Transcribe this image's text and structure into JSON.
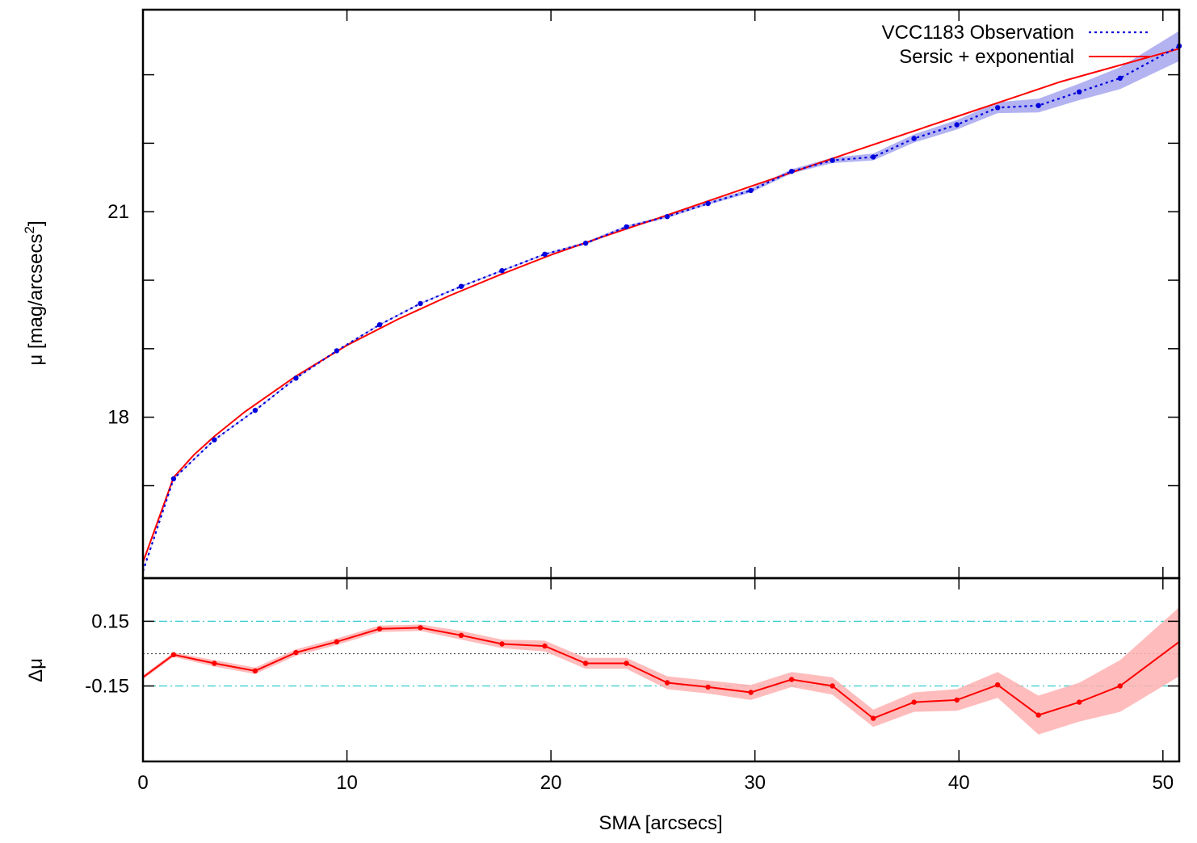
{
  "chart_data": [
    {
      "type": "line",
      "panel": "profile",
      "ylabel": "μ [mag/arcsecs",
      "ylabel_sup": "2",
      "ylabel_close": "]",
      "xlim": [
        0,
        50.8
      ],
      "ylim": [
        23.95,
        15.65
      ],
      "y_reversed": true,
      "yticks": [
        {
          "value": 18,
          "label": "18"
        },
        {
          "value": 21,
          "label": "21"
        }
      ],
      "yminor": [
        17,
        19,
        20,
        22,
        23
      ],
      "xticks": [
        0,
        10,
        20,
        30,
        40,
        50
      ],
      "legend_position": "top-right",
      "series": [
        {
          "name": "VCC1183 Observation",
          "style": "dotted",
          "color": "#0000dd",
          "markers": true,
          "band_color": "#9999ee",
          "x": [
            0,
            1.5,
            3.5,
            5.5,
            7.5,
            9.5,
            11.6,
            13.6,
            15.6,
            17.6,
            19.7,
            21.7,
            23.7,
            25.7,
            27.7,
            29.8,
            31.8,
            33.8,
            35.8,
            37.8,
            39.9,
            41.9,
            43.9,
            45.9,
            47.9,
            50.8
          ],
          "y": [
            15.75,
            17.1,
            17.67,
            18.1,
            18.57,
            18.97,
            19.35,
            19.66,
            19.91,
            20.14,
            20.38,
            20.54,
            20.78,
            20.93,
            21.12,
            21.31,
            21.59,
            21.75,
            21.8,
            22.07,
            22.27,
            22.52,
            22.55,
            22.75,
            22.95,
            23.42
          ],
          "err": [
            0.01,
            0.01,
            0.01,
            0.01,
            0.01,
            0.01,
            0.01,
            0.01,
            0.01,
            0.01,
            0.01,
            0.02,
            0.02,
            0.02,
            0.02,
            0.03,
            0.03,
            0.04,
            0.05,
            0.06,
            0.07,
            0.08,
            0.1,
            0.12,
            0.16,
            0.22
          ]
        },
        {
          "name": "Sersic + exponential",
          "style": "solid",
          "color": "#ff0000",
          "x": [
            0,
            1.5,
            2.5,
            3.5,
            5,
            7.5,
            10,
            12.5,
            15,
            17.5,
            20,
            22.5,
            25,
            30,
            35,
            40,
            45,
            50.8
          ],
          "y": [
            15.88,
            17.12,
            17.45,
            17.72,
            18.08,
            18.6,
            19.05,
            19.43,
            19.77,
            20.08,
            20.37,
            20.63,
            20.88,
            21.39,
            21.9,
            22.4,
            22.9,
            23.38
          ]
        }
      ]
    },
    {
      "type": "line",
      "panel": "residual",
      "ylabel": "Δμ",
      "xlabel": "SMA [arcsecs]",
      "xlim": [
        0,
        50.8
      ],
      "ylim": [
        -0.5,
        0.35
      ],
      "yticks": [
        {
          "value": 0.15,
          "label": "0.15"
        },
        {
          "value": -0.15,
          "label": "-0.15"
        }
      ],
      "xticks": [
        {
          "value": 0,
          "label": "0"
        },
        {
          "value": 10,
          "label": "10"
        },
        {
          "value": 20,
          "label": "20"
        },
        {
          "value": 30,
          "label": "30"
        },
        {
          "value": 40,
          "label": "40"
        },
        {
          "value": 50,
          "label": "50"
        }
      ],
      "reference_lines": [
        {
          "value": 0.15,
          "style": "dash-dot",
          "color": "#33cccc"
        },
        {
          "value": -0.15,
          "style": "dash-dot",
          "color": "#33cccc"
        },
        {
          "value": 0,
          "style": "dotted",
          "color": "#555555"
        }
      ],
      "series": [
        {
          "style": "solid",
          "color": "#ff0000",
          "markers": true,
          "band_color": "#ffb0b0",
          "x": [
            0,
            1.5,
            3.5,
            5.5,
            7.5,
            9.5,
            11.6,
            13.6,
            15.6,
            17.6,
            19.7,
            21.7,
            23.7,
            25.7,
            27.7,
            29.8,
            31.8,
            33.8,
            35.8,
            37.8,
            39.9,
            41.9,
            43.9,
            45.9,
            47.9,
            50.8
          ],
          "y": [
            -0.11,
            -0.005,
            -0.045,
            -0.08,
            0.005,
            0.055,
            0.115,
            0.12,
            0.085,
            0.045,
            0.035,
            -0.045,
            -0.045,
            -0.135,
            -0.155,
            -0.18,
            -0.12,
            -0.15,
            -0.3,
            -0.225,
            -0.215,
            -0.145,
            -0.285,
            -0.225,
            -0.15,
            0.055
          ],
          "err": [
            0.01,
            0.01,
            0.015,
            0.015,
            0.015,
            0.015,
            0.015,
            0.015,
            0.02,
            0.02,
            0.025,
            0.025,
            0.025,
            0.03,
            0.03,
            0.035,
            0.035,
            0.04,
            0.04,
            0.045,
            0.05,
            0.06,
            0.09,
            0.09,
            0.12,
            0.16
          ]
        }
      ]
    }
  ]
}
